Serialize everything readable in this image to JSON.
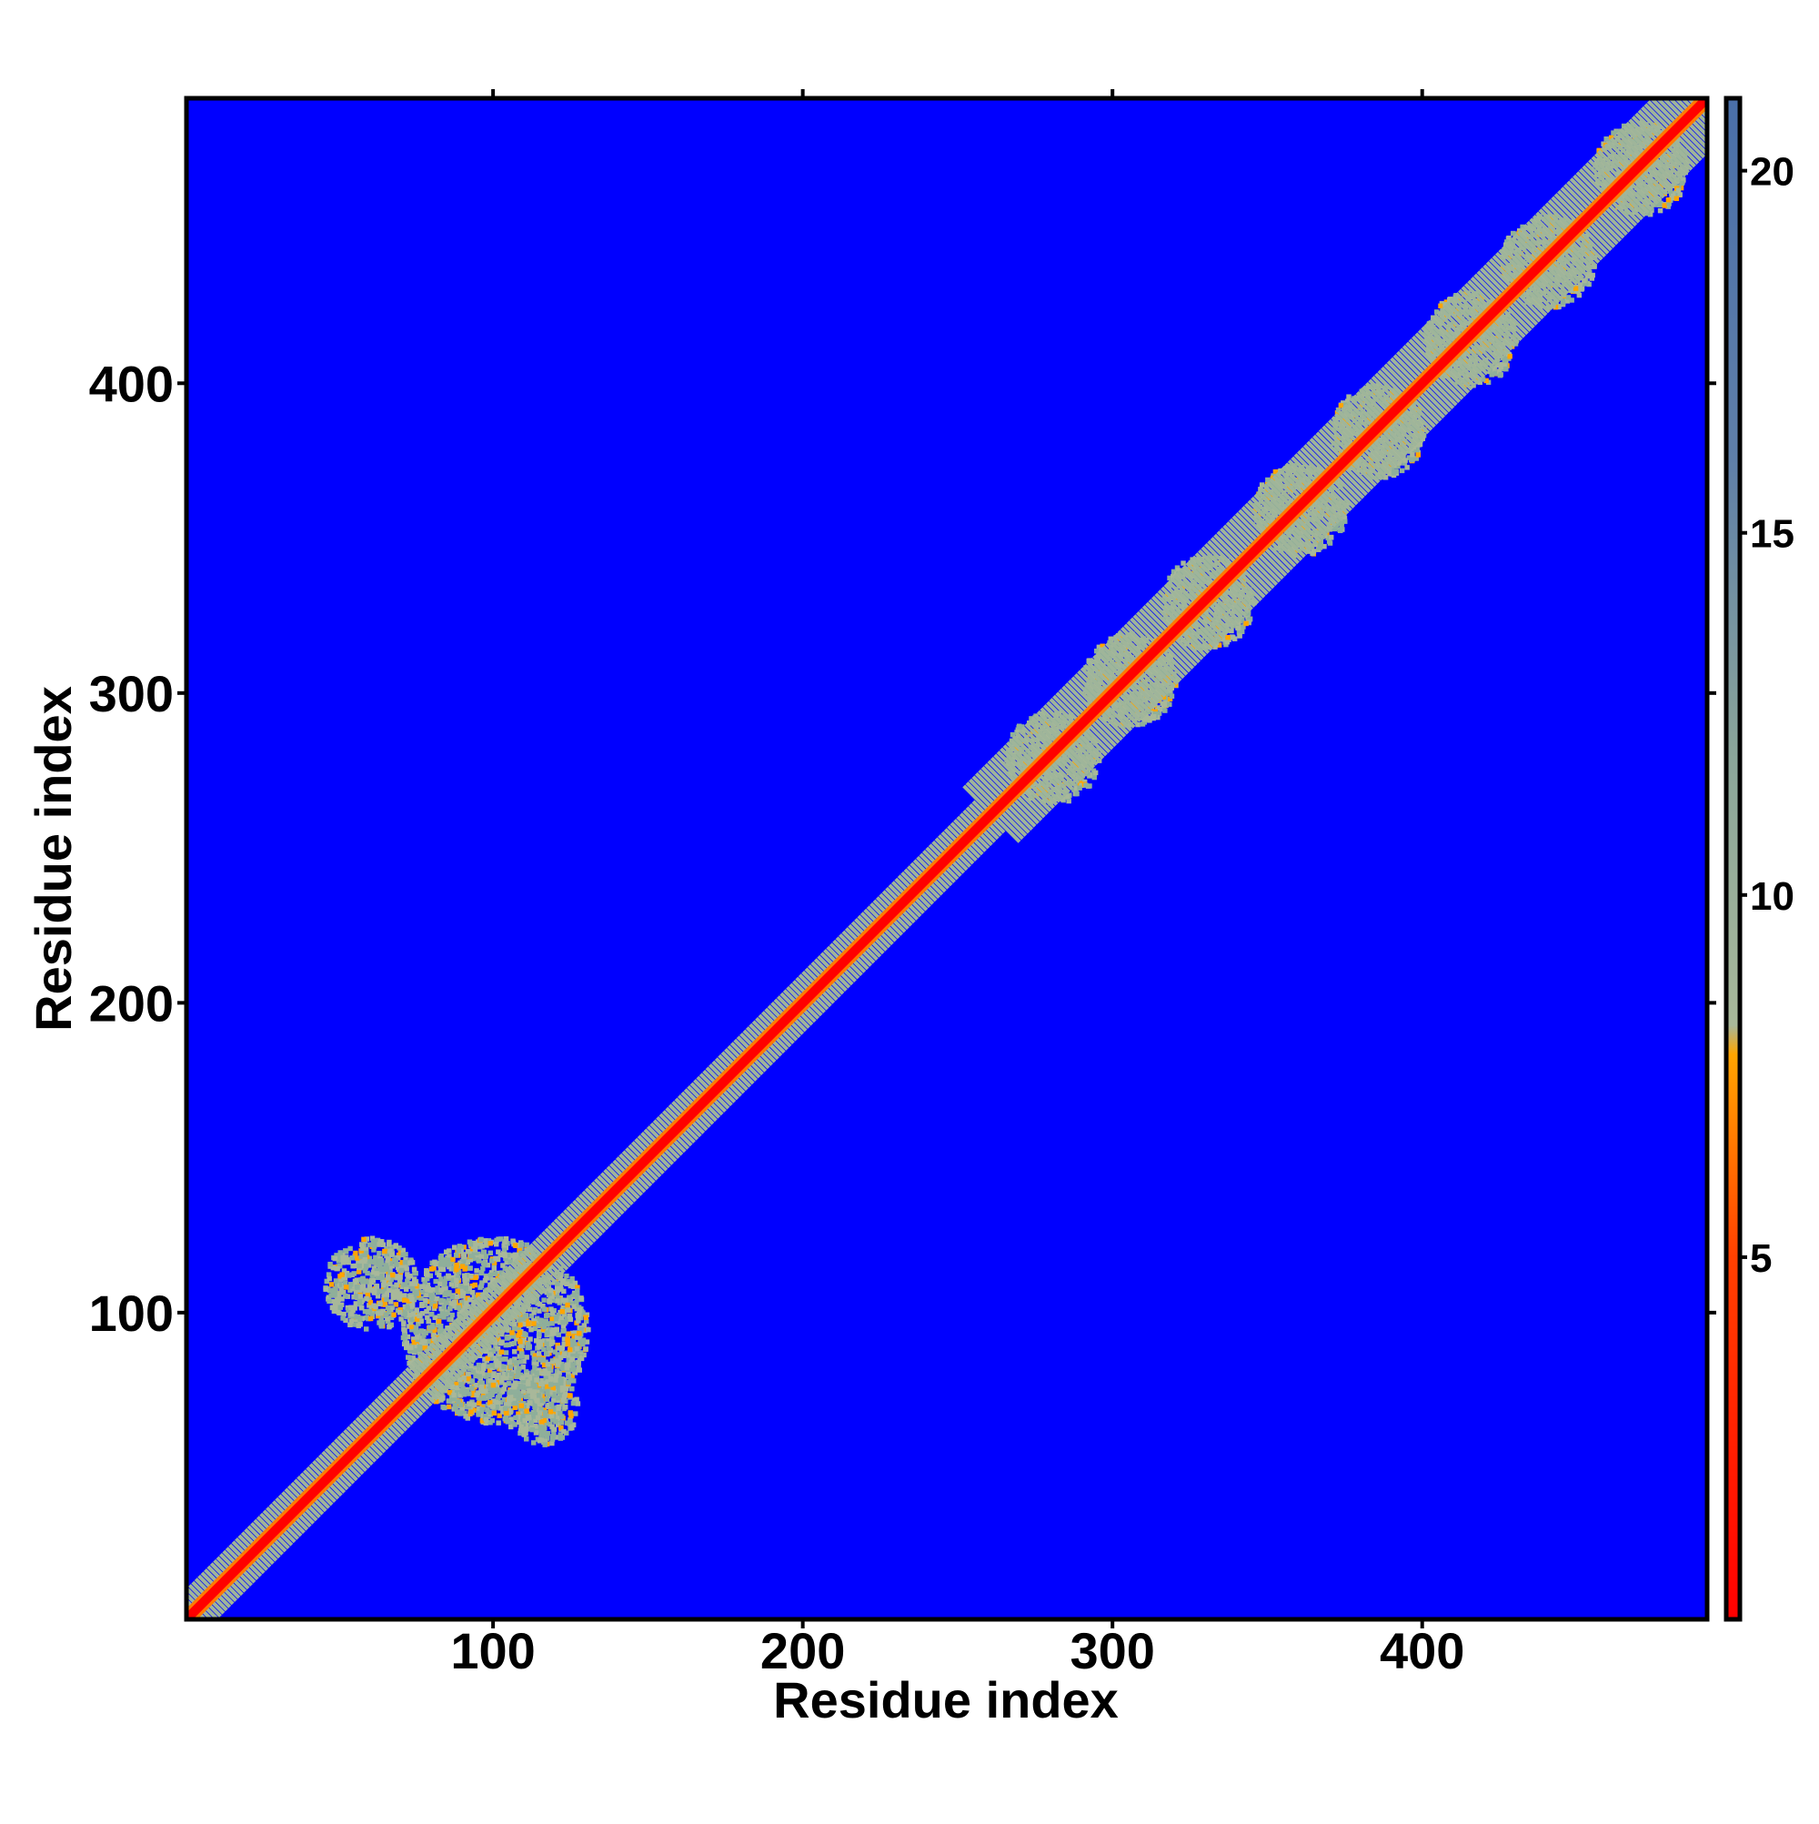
{
  "chart_data": {
    "type": "heatmap",
    "title": "",
    "xlabel": "Residue index",
    "ylabel": "Residue index",
    "xlim": [
      1,
      492
    ],
    "ylim": [
      1,
      492
    ],
    "x_ticks": [
      100,
      200,
      300,
      400
    ],
    "y_ticks": [
      100,
      200,
      300,
      400
    ],
    "x_tick_labels": [
      "100",
      "200",
      "300",
      "400"
    ],
    "y_tick_labels": [
      "100",
      "200",
      "300",
      "400"
    ],
    "grid": false,
    "colorbar": {
      "label": "",
      "range": [
        0,
        21
      ],
      "ticks": [
        5,
        10,
        15,
        20
      ],
      "tick_labels": [
        "5",
        "10",
        "15",
        "20"
      ],
      "stops": [
        {
          "value": 0.0,
          "color": "#ff0000"
        },
        {
          "value": 5.0,
          "color": "#ff4000"
        },
        {
          "value": 7.8,
          "color": "#ffa500"
        },
        {
          "value": 8.2,
          "color": "#a8b89a"
        },
        {
          "value": 12.0,
          "color": "#8aa59a"
        },
        {
          "value": 16.0,
          "color": "#5f7fa8"
        },
        {
          "value": 21.0,
          "color": "#4a6fa8"
        }
      ],
      "background_color": "#0000ff"
    },
    "diagonal": {
      "description_values": "distance ~0 along i = j; contacts clustered near diagonal",
      "band_width_residues": 3
    },
    "contact_clusters": [
      {
        "center_x": 100,
        "center_y": 95,
        "spread": 30,
        "level": "grey"
      },
      {
        "center_x": 60,
        "center_y": 110,
        "spread": 15,
        "level": "grey"
      },
      {
        "center_x": 115,
        "center_y": 70,
        "spread": 12,
        "level": "grey"
      },
      {
        "center_x": 280,
        "center_y": 280,
        "spread": 15,
        "level": "grey"
      },
      {
        "center_x": 305,
        "center_y": 305,
        "spread": 15,
        "level": "grey"
      },
      {
        "center_x": 330,
        "center_y": 330,
        "spread": 15,
        "level": "grey"
      },
      {
        "center_x": 360,
        "center_y": 360,
        "spread": 15,
        "level": "grey"
      },
      {
        "center_x": 385,
        "center_y": 385,
        "spread": 15,
        "level": "grey"
      },
      {
        "center_x": 415,
        "center_y": 415,
        "spread": 15,
        "level": "grey"
      },
      {
        "center_x": 440,
        "center_y": 440,
        "spread": 15,
        "level": "grey"
      },
      {
        "center_x": 470,
        "center_y": 470,
        "spread": 15,
        "level": "grey"
      }
    ]
  }
}
